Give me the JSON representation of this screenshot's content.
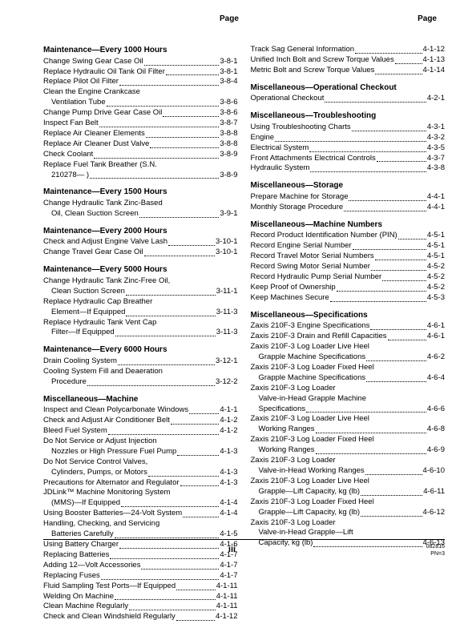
{
  "pageLabel": "Page",
  "footer": {
    "center": "iii",
    "right_small": "082816",
    "right_line": "PN=3"
  },
  "left": [
    {
      "title": "Maintenance—Every 1000 Hours",
      "items": [
        {
          "lines": [
            "Change Swing Gear Case Oil"
          ],
          "page": "3-8-1"
        },
        {
          "lines": [
            "Replace Hydraulic Oil Tank Oil Filter"
          ],
          "page": "3-8-1"
        },
        {
          "lines": [
            "Replace Pilot Oil Filter"
          ],
          "page": "3-8-4"
        },
        {
          "lines": [
            "Clean the Engine Crankcase",
            "Ventilation Tube"
          ],
          "page": "3-8-6"
        },
        {
          "lines": [
            "Change Pump Drive Gear Case Oil"
          ],
          "page": "3-8-6"
        },
        {
          "lines": [
            "Inspect Fan Belt"
          ],
          "page": "3-8-7"
        },
        {
          "lines": [
            "Replace Air Cleaner Elements"
          ],
          "page": "3-8-8"
        },
        {
          "lines": [
            "Replace Air Cleaner Dust Valve"
          ],
          "page": "3-8-8"
        },
        {
          "lines": [
            "Check Coolant"
          ],
          "page": "3-8-9"
        },
        {
          "lines": [
            "Replace Fuel Tank Breather (S.N.",
            "210278— )"
          ],
          "page": "3-8-9"
        }
      ]
    },
    {
      "title": "Maintenance—Every 1500 Hours",
      "items": [
        {
          "lines": [
            "Change Hydraulic Tank Zinc-Based",
            "Oil, Clean Suction Screen"
          ],
          "page": "3-9-1"
        }
      ]
    },
    {
      "title": "Maintenance—Every 2000 Hours",
      "items": [
        {
          "lines": [
            "Check and Adjust Engine Valve Lash"
          ],
          "page": "3-10-1"
        },
        {
          "lines": [
            "Change Travel Gear Case Oil"
          ],
          "page": "3-10-1"
        }
      ]
    },
    {
      "title": "Maintenance—Every 5000 Hours",
      "items": [
        {
          "lines": [
            "Change Hydraulic Tank Zinc-Free Oil,",
            "Clean Suction Screen"
          ],
          "page": "3-11-1"
        },
        {
          "lines": [
            "Replace Hydraulic Cap Breather",
            "Element—If Equipped"
          ],
          "page": "3-11-3"
        },
        {
          "lines": [
            "Replace Hydraulic Tank Vent Cap",
            "Filter—If Equipped"
          ],
          "page": "3-11-3"
        }
      ]
    },
    {
      "title": "Maintenance—Every 6000 Hours",
      "items": [
        {
          "lines": [
            "Drain Cooling System"
          ],
          "page": "3-12-1"
        },
        {
          "lines": [
            "Cooling System Fill and Deaeration",
            "Procedure"
          ],
          "page": "3-12-2"
        }
      ]
    },
    {
      "title": "Miscellaneous—Machine",
      "items": [
        {
          "lines": [
            "Inspect and Clean Polycarbonate Windows"
          ],
          "page": "4-1-1"
        },
        {
          "lines": [
            "Check and Adjust Air Conditioner Belt"
          ],
          "page": "4-1-2"
        },
        {
          "lines": [
            "Bleed Fuel System"
          ],
          "page": "4-1-2"
        },
        {
          "lines": [
            "Do Not Service or Adjust Injection",
            "Nozzles or High Pressure Fuel Pump"
          ],
          "page": "4-1-3"
        },
        {
          "lines": [
            "Do Not Service Control Valves,",
            "Cylinders, Pumps, or Motors"
          ],
          "page": "4-1-3"
        },
        {
          "lines": [
            "Precautions for Alternator and Regulator"
          ],
          "page": "4-1-3"
        },
        {
          "lines": [
            "JDLink™ Machine Monitoring System",
            "(MMS)—If Equipped"
          ],
          "page": "4-1-4"
        },
        {
          "lines": [
            "Using Booster Batteries—24-Volt System"
          ],
          "page": "4-1-4"
        },
        {
          "lines": [
            "Handling, Checking, and Servicing",
            "Batteries Carefully"
          ],
          "page": "4-1-5"
        },
        {
          "lines": [
            "Using Battery Charger"
          ],
          "page": "4-1-6"
        },
        {
          "lines": [
            "Replacing Batteries"
          ],
          "page": "4-1-7"
        },
        {
          "lines": [
            "Adding 12—Volt Accessories"
          ],
          "page": "4-1-7"
        },
        {
          "lines": [
            "Replacing Fuses"
          ],
          "page": "4-1-7"
        },
        {
          "lines": [
            "Fluid Sampling Test Ports—If Equipped"
          ],
          "page": "4-1-11"
        },
        {
          "lines": [
            "Welding On Machine"
          ],
          "page": "4-1-11"
        },
        {
          "lines": [
            "Clean Machine Regularly"
          ],
          "page": "4-1-11"
        },
        {
          "lines": [
            "Check and Clean Windshield Regularly"
          ],
          "page": "4-1-12"
        }
      ]
    }
  ],
  "right": [
    {
      "title": "",
      "items": [
        {
          "lines": [
            "Track Sag General Information"
          ],
          "page": "4-1-12"
        },
        {
          "lines": [
            "Unified Inch Bolt and Screw Torque Values"
          ],
          "page": "4-1-13"
        },
        {
          "lines": [
            "Metric Bolt and Screw Torque Values"
          ],
          "page": "4-1-14"
        }
      ]
    },
    {
      "title": "Miscellaneous—Operational Checkout",
      "items": [
        {
          "lines": [
            "Operational Checkout"
          ],
          "page": "4-2-1"
        }
      ]
    },
    {
      "title": "Miscellaneous—Troubleshooting",
      "items": [
        {
          "lines": [
            "Using Troubleshooting Charts"
          ],
          "page": "4-3-1"
        },
        {
          "lines": [
            "Engine"
          ],
          "page": "4-3-2"
        },
        {
          "lines": [
            "Electrical System"
          ],
          "page": "4-3-5"
        },
        {
          "lines": [
            "Front Attachments Electrical Controls"
          ],
          "page": "4-3-7"
        },
        {
          "lines": [
            "Hydraulic System"
          ],
          "page": "4-3-8"
        }
      ]
    },
    {
      "title": "Miscellaneous—Storage",
      "items": [
        {
          "lines": [
            "Prepare Machine for Storage"
          ],
          "page": "4-4-1"
        },
        {
          "lines": [
            "Monthly Storage Procedure"
          ],
          "page": "4-4-1"
        }
      ]
    },
    {
      "title": "Miscellaneous—Machine Numbers",
      "items": [
        {
          "lines": [
            "Record Product Identification Number (PIN)"
          ],
          "page": "4-5-1"
        },
        {
          "lines": [
            "Record Engine Serial Number"
          ],
          "page": "4-5-1"
        },
        {
          "lines": [
            "Record Travel Motor Serial Numbers"
          ],
          "page": "4-5-1"
        },
        {
          "lines": [
            "Record Swing Motor Serial Number"
          ],
          "page": "4-5-2"
        },
        {
          "lines": [
            "Record Hydraulic Pump Serial Number"
          ],
          "page": "4-5-2"
        },
        {
          "lines": [
            "Keep Proof of Ownership"
          ],
          "page": "4-5-2"
        },
        {
          "lines": [
            "Keep Machines Secure"
          ],
          "page": "4-5-3"
        }
      ]
    },
    {
      "title": "Miscellaneous—Specifications",
      "items": [
        {
          "lines": [
            "Zaxis 210F-3 Engine Specifications"
          ],
          "page": "4-6-1"
        },
        {
          "lines": [
            "Zaxis 210F-3 Drain and Refill Capacities"
          ],
          "page": "4-6-1"
        },
        {
          "lines": [
            "Zaxis 210F-3 Log Loader Live Heel",
            "Grapple Machine Specifications"
          ],
          "page": "4-6-2"
        },
        {
          "lines": [
            "Zaxis 210F-3 Log Loader Fixed Heel",
            "Grapple Machine Specifications"
          ],
          "page": "4-6-4"
        },
        {
          "lines": [
            "Zaxis 210F-3 Log Loader",
            "Valve-in-Head Grapple Machine",
            "Specifications"
          ],
          "page": "4-6-6"
        },
        {
          "lines": [
            "Zaxis 210F-3 Log Loader Live Heel",
            "Working Ranges"
          ],
          "page": "4-6-8"
        },
        {
          "lines": [
            "Zaxis 210F-3 Log Loader Fixed Heel",
            "Working Ranges"
          ],
          "page": "4-6-9"
        },
        {
          "lines": [
            "Zaxis 210F-3 Log Loader",
            "Valve-in-Head Working Ranges"
          ],
          "page": "4-6-10"
        },
        {
          "lines": [
            "Zaxis 210F-3 Log Loader Live Heel",
            "Grapple—Lift Capacity, kg (lb)"
          ],
          "page": "4-6-11"
        },
        {
          "lines": [
            "Zaxis 210F-3 Log Loader Fixed Heel",
            "Grapple—Lift Capacity, kg (lb)"
          ],
          "page": "4-6-12"
        },
        {
          "lines": [
            "Zaxis 210F-3 Log Loader",
            "Valve-in-Head Grapple—Lift",
            "Capacity, kg (lb)"
          ],
          "page": "4-6-13"
        }
      ]
    }
  ]
}
